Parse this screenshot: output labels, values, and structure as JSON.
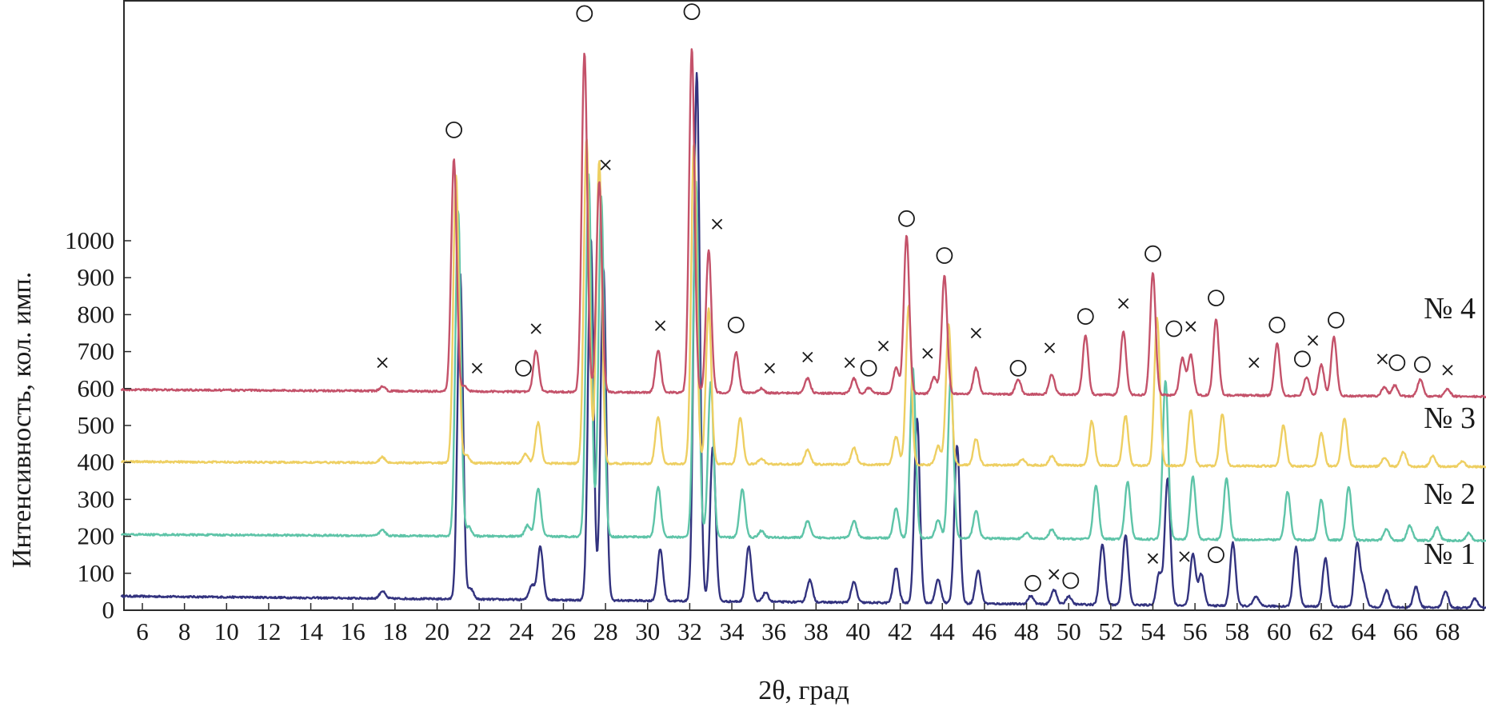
{
  "chart_data": {
    "type": "line",
    "title": "",
    "xlabel": "2θ, град",
    "ylabel": "Интенсивность, кол. имп.",
    "xlim": [
      5,
      70
    ],
    "ylim": [
      0,
      1000
    ],
    "x_ticks": [
      6,
      8,
      10,
      12,
      14,
      16,
      18,
      20,
      22,
      24,
      26,
      28,
      30,
      32,
      34,
      36,
      38,
      40,
      42,
      44,
      46,
      48,
      50,
      52,
      54,
      56,
      58,
      60,
      62,
      64,
      66,
      68
    ],
    "y_ticks": [
      0,
      100,
      200,
      300,
      400,
      500,
      600,
      700,
      800,
      900,
      1000
    ],
    "grid": false,
    "legend": "series names printed at right end of each pattern",
    "peak_width_deg": 0.13,
    "marker_legend": {
      "circle": "○",
      "cross": "×"
    },
    "series": [
      {
        "name": "№ 1",
        "color": "#33337f",
        "baseline_start": 38,
        "baseline_end": 6,
        "peaks": [
          [
            17.4,
            20
          ],
          [
            21.1,
            880
          ],
          [
            21.6,
            28
          ],
          [
            24.5,
            40
          ],
          [
            24.9,
            145
          ],
          [
            27.3,
            980
          ],
          [
            27.9,
            900
          ],
          [
            30.6,
            140
          ],
          [
            32.3,
            970
          ],
          [
            32.4,
            560
          ],
          [
            33.1,
            420
          ],
          [
            34.8,
            150
          ],
          [
            35.6,
            25
          ],
          [
            37.7,
            60
          ],
          [
            39.8,
            55
          ],
          [
            41.8,
            95
          ],
          [
            42.8,
            500
          ],
          [
            43.8,
            65
          ],
          [
            44.7,
            430
          ],
          [
            45.7,
            90
          ],
          [
            48.2,
            22
          ],
          [
            49.3,
            40
          ],
          [
            50.0,
            22
          ],
          [
            51.6,
            165
          ],
          [
            52.7,
            190
          ],
          [
            54.3,
            85
          ],
          [
            54.7,
            345
          ],
          [
            55.9,
            140
          ],
          [
            56.3,
            85
          ],
          [
            57.8,
            170
          ],
          [
            58.9,
            25
          ],
          [
            60.8,
            160
          ],
          [
            62.2,
            130
          ],
          [
            63.7,
            170
          ],
          [
            64.0,
            60
          ],
          [
            65.1,
            45
          ],
          [
            66.5,
            55
          ],
          [
            67.9,
            45
          ],
          [
            69.3,
            25
          ]
        ]
      },
      {
        "name": "№ 2",
        "color": "#5ec4a8",
        "baseline_start": 205,
        "baseline_end": 188,
        "peaks": [
          [
            17.4,
            15
          ],
          [
            21.0,
            880
          ],
          [
            21.5,
            25
          ],
          [
            24.3,
            30
          ],
          [
            24.8,
            130
          ],
          [
            27.2,
            980
          ],
          [
            27.8,
            920
          ],
          [
            30.5,
            135
          ],
          [
            32.3,
            960
          ],
          [
            33.0,
            420
          ],
          [
            34.5,
            130
          ],
          [
            35.4,
            18
          ],
          [
            37.6,
            45
          ],
          [
            39.8,
            45
          ],
          [
            41.8,
            80
          ],
          [
            42.6,
            460
          ],
          [
            43.8,
            50
          ],
          [
            44.4,
            430
          ],
          [
            45.6,
            75
          ],
          [
            48.0,
            15
          ],
          [
            49.2,
            25
          ],
          [
            51.3,
            145
          ],
          [
            52.8,
            155
          ],
          [
            54.6,
            430
          ],
          [
            55.9,
            170
          ],
          [
            57.5,
            165
          ],
          [
            60.4,
            130
          ],
          [
            62.0,
            110
          ],
          [
            63.3,
            145
          ],
          [
            65.1,
            30
          ],
          [
            66.2,
            40
          ],
          [
            67.5,
            35
          ],
          [
            69.0,
            20
          ]
        ]
      },
      {
        "name": "№ 3",
        "color": "#eecf62",
        "baseline_start": 402,
        "baseline_end": 388,
        "peaks": [
          [
            17.4,
            15
          ],
          [
            20.9,
            780
          ],
          [
            21.4,
            20
          ],
          [
            24.2,
            25
          ],
          [
            24.8,
            110
          ],
          [
            27.1,
            880
          ],
          [
            27.7,
            820
          ],
          [
            30.5,
            125
          ],
          [
            32.2,
            870
          ],
          [
            32.9,
            420
          ],
          [
            34.4,
            125
          ],
          [
            35.4,
            15
          ],
          [
            37.6,
            40
          ],
          [
            39.8,
            45
          ],
          [
            41.8,
            75
          ],
          [
            42.4,
            430
          ],
          [
            43.8,
            50
          ],
          [
            44.3,
            380
          ],
          [
            45.6,
            70
          ],
          [
            47.8,
            15
          ],
          [
            49.2,
            25
          ],
          [
            51.1,
            120
          ],
          [
            52.7,
            135
          ],
          [
            54.2,
            400
          ],
          [
            55.8,
            150
          ],
          [
            57.3,
            140
          ],
          [
            60.2,
            110
          ],
          [
            62.0,
            90
          ],
          [
            63.1,
            130
          ],
          [
            65.0,
            25
          ],
          [
            65.9,
            40
          ],
          [
            67.3,
            30
          ],
          [
            68.7,
            15
          ]
        ]
      },
      {
        "name": "№ 4",
        "color": "#c4526a",
        "baseline_start": 597,
        "baseline_end": 578,
        "peaks": [
          [
            17.4,
            12
          ],
          [
            20.8,
            630
          ],
          [
            21.3,
            15
          ],
          [
            24.7,
            110
          ],
          [
            27.0,
            920
          ],
          [
            27.7,
            570
          ],
          [
            30.5,
            115
          ],
          [
            32.1,
            930
          ],
          [
            32.9,
            385
          ],
          [
            34.2,
            110
          ],
          [
            35.4,
            12
          ],
          [
            37.6,
            40
          ],
          [
            39.8,
            40
          ],
          [
            40.5,
            15
          ],
          [
            41.8,
            70
          ],
          [
            42.3,
            430
          ],
          [
            43.6,
            45
          ],
          [
            44.1,
            320
          ],
          [
            45.6,
            70
          ],
          [
            47.6,
            40
          ],
          [
            49.2,
            55
          ],
          [
            50.8,
            160
          ],
          [
            52.6,
            170
          ],
          [
            54.0,
            330
          ],
          [
            55.4,
            100
          ],
          [
            55.8,
            110
          ],
          [
            57.0,
            205
          ],
          [
            59.9,
            140
          ],
          [
            61.3,
            50
          ],
          [
            62.0,
            85
          ],
          [
            62.6,
            160
          ],
          [
            65.0,
            25
          ],
          [
            65.5,
            30
          ],
          [
            66.7,
            45
          ],
          [
            68.0,
            20
          ]
        ]
      }
    ],
    "annotations": [
      {
        "symbol": "circle",
        "x": 20.8,
        "y": 1300
      },
      {
        "symbol": "circle",
        "x": 27.0,
        "y": 1615
      },
      {
        "symbol": "circle",
        "x": 32.1,
        "y": 1620
      },
      {
        "symbol": "circle",
        "x": 24.1,
        "y": 655
      },
      {
        "symbol": "circle",
        "x": 34.2,
        "y": 772
      },
      {
        "symbol": "circle",
        "x": 40.5,
        "y": 655
      },
      {
        "symbol": "circle",
        "x": 42.3,
        "y": 1060
      },
      {
        "symbol": "circle",
        "x": 44.1,
        "y": 960
      },
      {
        "symbol": "circle",
        "x": 47.6,
        "y": 655
      },
      {
        "symbol": "circle",
        "x": 50.8,
        "y": 795
      },
      {
        "symbol": "circle",
        "x": 54.0,
        "y": 965
      },
      {
        "symbol": "circle",
        "x": 55.0,
        "y": 762
      },
      {
        "symbol": "circle",
        "x": 57.0,
        "y": 845
      },
      {
        "symbol": "circle",
        "x": 59.9,
        "y": 772
      },
      {
        "symbol": "circle",
        "x": 61.1,
        "y": 680
      },
      {
        "symbol": "circle",
        "x": 62.7,
        "y": 785
      },
      {
        "symbol": "circle",
        "x": 65.6,
        "y": 670
      },
      {
        "symbol": "circle",
        "x": 66.8,
        "y": 665
      },
      {
        "symbol": "circle",
        "x": 48.3,
        "y": 73
      },
      {
        "symbol": "circle",
        "x": 50.1,
        "y": 80
      },
      {
        "symbol": "circle",
        "x": 57.0,
        "y": 150
      },
      {
        "symbol": "cross",
        "x": 17.4,
        "y": 670
      },
      {
        "symbol": "cross",
        "x": 21.9,
        "y": 655
      },
      {
        "symbol": "cross",
        "x": 24.7,
        "y": 762
      },
      {
        "symbol": "cross",
        "x": 28.0,
        "y": 1205
      },
      {
        "symbol": "cross",
        "x": 30.6,
        "y": 770
      },
      {
        "symbol": "cross",
        "x": 33.3,
        "y": 1045
      },
      {
        "symbol": "cross",
        "x": 35.8,
        "y": 655
      },
      {
        "symbol": "cross",
        "x": 37.6,
        "y": 685
      },
      {
        "symbol": "cross",
        "x": 39.6,
        "y": 670
      },
      {
        "symbol": "cross",
        "x": 41.2,
        "y": 715
      },
      {
        "symbol": "cross",
        "x": 43.3,
        "y": 695
      },
      {
        "symbol": "cross",
        "x": 45.6,
        "y": 750
      },
      {
        "symbol": "cross",
        "x": 49.1,
        "y": 710
      },
      {
        "symbol": "cross",
        "x": 52.6,
        "y": 830
      },
      {
        "symbol": "cross",
        "x": 55.8,
        "y": 768
      },
      {
        "symbol": "cross",
        "x": 58.8,
        "y": 670
      },
      {
        "symbol": "cross",
        "x": 61.6,
        "y": 730
      },
      {
        "symbol": "cross",
        "x": 64.9,
        "y": 680
      },
      {
        "symbol": "cross",
        "x": 68.0,
        "y": 650
      },
      {
        "symbol": "cross",
        "x": 49.3,
        "y": 97
      },
      {
        "symbol": "cross",
        "x": 54.0,
        "y": 140
      },
      {
        "symbol": "cross",
        "x": 55.5,
        "y": 145
      }
    ]
  }
}
